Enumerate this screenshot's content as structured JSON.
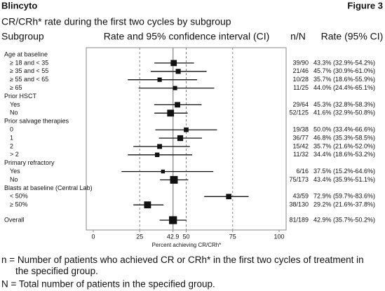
{
  "chart_data": {
    "type": "forest",
    "title": "Blincyto",
    "figure_label": "Figure 3",
    "subtitle": "CR/CRh* rate during the first two cycles by subgroup",
    "column_headers": {
      "subgroup": "Subgroup",
      "plot": "Rate and 95% confidence interval (CI)",
      "nN": "n/N",
      "rate": "Rate (95% CI)"
    },
    "x_label": "Percent achieving CR/CRh*",
    "xlim": [
      0,
      100
    ],
    "xticks": [
      0,
      25,
      42.9,
      50,
      75,
      100
    ],
    "reference_line": 42.9,
    "dashed_lines": [
      25,
      50,
      75
    ],
    "color": "#111111",
    "groups": [
      {
        "name": "Age at baseline",
        "rows": [
          {
            "label": "≥ 18 and < 35",
            "nN": "39/90",
            "value": 43.3,
            "low": 32.9,
            "high": 54.2,
            "rate_label": "43.3% (32.9%-54.2%)"
          },
          {
            "label": "≥ 35 and < 55",
            "nN": "21/46",
            "value": 45.7,
            "low": 30.9,
            "high": 61.0,
            "rate_label": "45.7% (30.9%-61.0%)"
          },
          {
            "label": "≥ 55 and < 65",
            "nN": "10/28",
            "value": 35.7,
            "low": 18.6,
            "high": 55.9,
            "rate_label": "35.7% (18.6%-55.9%)"
          },
          {
            "label": "≥ 65",
            "nN": "11/25",
            "value": 44.0,
            "low": 24.4,
            "high": 65.1,
            "rate_label": "44.0% (24.4%-65.1%)"
          }
        ]
      },
      {
        "name": "Prior HSCT",
        "rows": [
          {
            "label": "Yes",
            "nN": "29/64",
            "value": 45.3,
            "low": 32.8,
            "high": 58.3,
            "rate_label": "45.3% (32.8%-58.3%)"
          },
          {
            "label": "No",
            "nN": "52/125",
            "value": 41.6,
            "low": 32.9,
            "high": 50.8,
            "rate_label": "41.6% (32.9%-50.8%)"
          }
        ]
      },
      {
        "name": "Prior salvage therapies",
        "rows": [
          {
            "label": "0",
            "nN": "19/38",
            "value": 50.0,
            "low": 33.4,
            "high": 66.6,
            "rate_label": "50.0% (33.4%-66.6%)"
          },
          {
            "label": "1",
            "nN": "36/77",
            "value": 46.8,
            "low": 35.3,
            "high": 58.5,
            "rate_label": "46.8% (35.3%-58.5%)"
          },
          {
            "label": "2",
            "nN": "15/42",
            "value": 35.7,
            "low": 21.6,
            "high": 52.0,
            "rate_label": "35.7% (21.6%-52.0%)"
          },
          {
            "label": "> 2",
            "nN": "11/32",
            "value": 34.4,
            "low": 18.6,
            "high": 53.2,
            "rate_label": "34.4% (18.6%-53.2%)"
          }
        ]
      },
      {
        "name": "Primary refractory",
        "rows": [
          {
            "label": "Yes",
            "nN": "6/16",
            "value": 37.5,
            "low": 15.2,
            "high": 64.6,
            "rate_label": "37.5% (15.2%-64.6%)"
          },
          {
            "label": "No",
            "nN": "75/173",
            "value": 43.4,
            "low": 35.9,
            "high": 51.1,
            "rate_label": "43.4% (35.9%-51.1%)"
          }
        ]
      },
      {
        "name": "Blasts at baseline (Central Lab)",
        "rows": [
          {
            "label": "< 50%",
            "nN": "43/59",
            "value": 72.9,
            "low": 59.7,
            "high": 83.6,
            "rate_label": "72.9% (59.7%-83.6%)"
          },
          {
            "label": "≥ 50%",
            "nN": "38/130",
            "value": 29.2,
            "low": 21.6,
            "high": 37.8,
            "rate_label": "29.2% (21.6%-37.8%)"
          }
        ]
      }
    ],
    "overall": {
      "label": "Overall",
      "nN": "81/189",
      "value": 42.9,
      "low": 35.7,
      "high": 50.2,
      "rate_label": "42.9% (35.7%-50.2%)"
    },
    "footnotes": [
      "n = Number of patients who achieved CR or CRh* in the first two cycles of treatment in the specified group.",
      "N = Total number of patients in the specified group."
    ]
  }
}
